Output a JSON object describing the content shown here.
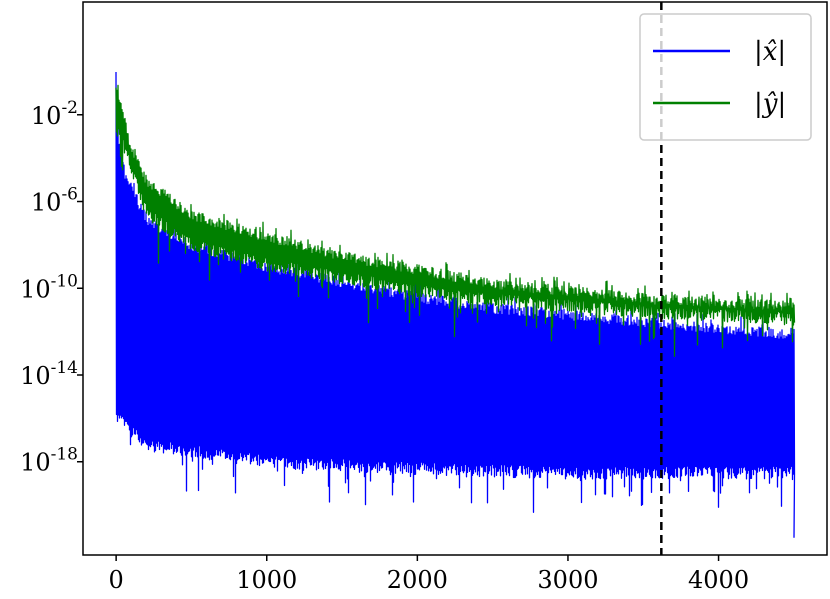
{
  "chart_data": {
    "type": "line",
    "title": "",
    "xlabel": "",
    "ylabel": "",
    "xlim": [
      -220,
      4720
    ],
    "y_scale": "log",
    "ylim_log10": [
      -22.3,
      3.2
    ],
    "x_ticks": [
      {
        "value": 0,
        "label": "0"
      },
      {
        "value": 1000,
        "label": "1000"
      },
      {
        "value": 2000,
        "label": "2000"
      },
      {
        "value": 3000,
        "label": "3000"
      },
      {
        "value": 4000,
        "label": "4000"
      }
    ],
    "y_ticks": [
      {
        "log10": -2,
        "base": "10",
        "exp": "-2"
      },
      {
        "log10": -6,
        "base": "10",
        "exp": "-6"
      },
      {
        "log10": -10,
        "base": "10",
        "exp": "-10"
      },
      {
        "log10": -14,
        "base": "10",
        "exp": "-14"
      },
      {
        "log10": -18,
        "base": "10",
        "exp": "-18"
      }
    ],
    "grid": false,
    "legend_position": "top-right",
    "series": [
      {
        "name": "|x̂|",
        "color": "#0000ff",
        "x_range": [
          0,
          4500
        ],
        "envelope_top_log10": [
          {
            "x": 0,
            "y": 0.3
          },
          {
            "x": 20,
            "y": -3.0
          },
          {
            "x": 60,
            "y": -4.5
          },
          {
            "x": 200,
            "y": -6.6
          },
          {
            "x": 500,
            "y": -7.8
          },
          {
            "x": 1000,
            "y": -8.8
          },
          {
            "x": 1500,
            "y": -9.5
          },
          {
            "x": 2000,
            "y": -10.2
          },
          {
            "x": 2500,
            "y": -10.7
          },
          {
            "x": 3000,
            "y": -11.0
          },
          {
            "x": 3600,
            "y": -11.4
          },
          {
            "x": 4500,
            "y": -11.9
          }
        ],
        "envelope_bottom_log10": [
          {
            "x": 0,
            "y": -16.2
          },
          {
            "x": 200,
            "y": -17.5
          },
          {
            "x": 1000,
            "y": -18.3
          },
          {
            "x": 2000,
            "y": -18.6
          },
          {
            "x": 3000,
            "y": -18.8
          },
          {
            "x": 4500,
            "y": -18.8
          }
        ],
        "min_log10": -21.5
      },
      {
        "name": "|ŷ|",
        "color": "#008000",
        "x_range": [
          0,
          4500
        ],
        "envelope_top_log10": [
          {
            "x": 0,
            "y": -0.6
          },
          {
            "x": 40,
            "y": -1.5
          },
          {
            "x": 100,
            "y": -3.4
          },
          {
            "x": 200,
            "y": -4.8
          },
          {
            "x": 500,
            "y": -6.4
          },
          {
            "x": 1000,
            "y": -7.4
          },
          {
            "x": 1500,
            "y": -8.3
          },
          {
            "x": 2000,
            "y": -8.9
          },
          {
            "x": 2500,
            "y": -9.6
          },
          {
            "x": 3000,
            "y": -9.9
          },
          {
            "x": 3600,
            "y": -10.3
          },
          {
            "x": 4500,
            "y": -10.6
          }
        ],
        "envelope_bottom_log10": [
          {
            "x": 0,
            "y": -2.8
          },
          {
            "x": 200,
            "y": -6.8
          },
          {
            "x": 500,
            "y": -8.3
          },
          {
            "x": 1000,
            "y": -9.2
          },
          {
            "x": 1500,
            "y": -9.8
          },
          {
            "x": 2000,
            "y": -10.4
          },
          {
            "x": 2500,
            "y": -10.8
          },
          {
            "x": 3000,
            "y": -11.1
          },
          {
            "x": 3600,
            "y": -11.4
          },
          {
            "x": 4500,
            "y": -11.7
          }
        ]
      }
    ],
    "annotations": [
      {
        "type": "vline",
        "x": 3620,
        "style": "dashed",
        "color": "#000000"
      }
    ]
  }
}
